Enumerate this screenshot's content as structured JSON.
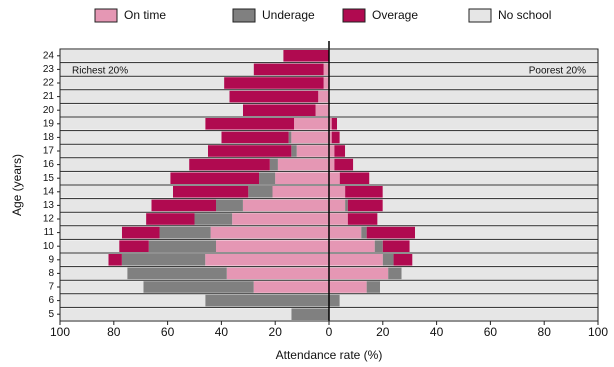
{
  "chart_data": {
    "type": "pyramid",
    "y_label": "Age (years)",
    "x_label": "Attendance rate (%)",
    "left_label": "Richest 20%",
    "right_label": "Poorest 20%",
    "categories": [
      "5",
      "6",
      "7",
      "8",
      "9",
      "10",
      "11",
      "12",
      "13",
      "14",
      "15",
      "16",
      "17",
      "18",
      "19",
      "20",
      "21",
      "22",
      "23",
      "24"
    ],
    "series": [
      {
        "name": "On time",
        "color": "#e597b4",
        "left": [
          0,
          0,
          28,
          38,
          46,
          42,
          44,
          36,
          32,
          21,
          20,
          19,
          12,
          14,
          13,
          5,
          4,
          2,
          2,
          0
        ],
        "right": [
          0,
          0,
          14,
          22,
          20,
          17,
          12,
          7,
          6,
          6,
          4,
          2,
          2,
          1,
          1,
          0,
          0,
          0,
          0,
          0
        ]
      },
      {
        "name": "Underage",
        "color": "#808080",
        "left": [
          14,
          46,
          41,
          37,
          31,
          25,
          19,
          14,
          10,
          9,
          6,
          3,
          2,
          1,
          0,
          0,
          0,
          0,
          0,
          0
        ],
        "right": [
          0,
          4,
          5,
          5,
          4,
          3,
          2,
          0,
          1,
          0,
          0,
          0,
          0,
          0,
          0,
          0,
          0,
          0,
          0,
          0
        ]
      },
      {
        "name": "Overage",
        "color": "#b00a50",
        "left": [
          0,
          0,
          0,
          0,
          5,
          11,
          14,
          18,
          24,
          28,
          33,
          30,
          31,
          25,
          33,
          27,
          33,
          37,
          26,
          17
        ],
        "right": [
          0,
          0,
          0,
          0,
          7,
          10,
          18,
          11,
          13,
          14,
          11,
          7,
          4,
          3,
          2,
          0,
          0,
          0,
          0,
          0
        ]
      },
      {
        "name": "No school",
        "color": "#e6e6e6",
        "left": [
          86,
          54,
          31,
          25,
          18,
          22,
          23,
          32,
          34,
          42,
          41,
          48,
          55,
          60,
          54,
          68,
          63,
          61,
          72,
          83
        ],
        "right": [
          100,
          96,
          81,
          73,
          69,
          70,
          68,
          82,
          80,
          80,
          85,
          91,
          94,
          96,
          97,
          100,
          100,
          100,
          100,
          100
        ]
      }
    ],
    "xlim": [
      -100,
      100
    ],
    "xticks": [
      {
        "value": -100,
        "label": "100"
      },
      {
        "value": -80,
        "label": "80"
      },
      {
        "value": -60,
        "label": "60"
      },
      {
        "value": -40,
        "label": "40"
      },
      {
        "value": -20,
        "label": "20"
      },
      0,
      20,
      40,
      60,
      80,
      100
    ]
  }
}
